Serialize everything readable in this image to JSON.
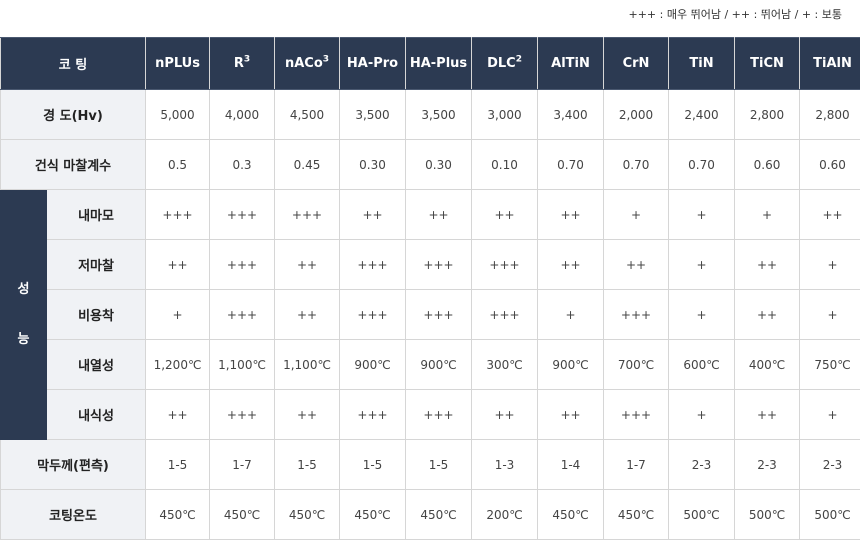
{
  "legend": "+++ : 매우 뛰어남 / ++ : 뛰어남 / + : 보통",
  "header": {
    "corner": "코 팅",
    "columns": [
      {
        "label": "nPLUs",
        "sup": ""
      },
      {
        "label": "R",
        "sup": "3"
      },
      {
        "label": "nACo",
        "sup": "3"
      },
      {
        "label": "HA-Pro",
        "sup": ""
      },
      {
        "label": "HA-Plus",
        "sup": ""
      },
      {
        "label": "DLC",
        "sup": "2"
      },
      {
        "label": "AlTiN",
        "sup": ""
      },
      {
        "label": "CrN",
        "sup": ""
      },
      {
        "label": "TiN",
        "sup": ""
      },
      {
        "label": "TiCN",
        "sup": ""
      },
      {
        "label": "TiAlN",
        "sup": ""
      }
    ]
  },
  "performance_group": {
    "chars": [
      "성",
      "능"
    ]
  },
  "rows": [
    {
      "label": "경 도(Hv)",
      "group": false,
      "values": [
        "5,000",
        "4,000",
        "4,500",
        "3,500",
        "3,500",
        "3,000",
        "3,400",
        "2,000",
        "2,400",
        "2,800",
        "2,800"
      ]
    },
    {
      "label": "건식 마찰계수",
      "group": false,
      "values": [
        "0.5",
        "0.3",
        "0.45",
        "0.30",
        "0.30",
        "0.10",
        "0.70",
        "0.70",
        "0.70",
        "0.60",
        "0.60"
      ]
    },
    {
      "label": "내마모",
      "group": true,
      "values": [
        "+++",
        "+++",
        "+++",
        "++",
        "++",
        "++",
        "++",
        "+",
        "+",
        "+",
        "++"
      ]
    },
    {
      "label": "저마찰",
      "group": true,
      "values": [
        "++",
        "+++",
        "++",
        "+++",
        "+++",
        "+++",
        "++",
        "++",
        "+",
        "++",
        "+"
      ]
    },
    {
      "label": "비용착",
      "group": true,
      "values": [
        "+",
        "+++",
        "++",
        "+++",
        "+++",
        "+++",
        "+",
        "+++",
        "+",
        "++",
        "+"
      ]
    },
    {
      "label": "내열성",
      "group": true,
      "values": [
        "1,200℃",
        "1,100℃",
        "1,100℃",
        "900℃",
        "900℃",
        "300℃",
        "900℃",
        "700℃",
        "600℃",
        "400℃",
        "750℃"
      ]
    },
    {
      "label": "내식성",
      "group": true,
      "values": [
        "++",
        "+++",
        "++",
        "+++",
        "+++",
        "++",
        "++",
        "+++",
        "+",
        "++",
        "+"
      ]
    },
    {
      "label": "막두께(편측)",
      "group": false,
      "values": [
        "1-5",
        "1-7",
        "1-5",
        "1-5",
        "1-5",
        "1-3",
        "1-4",
        "1-7",
        "2-3",
        "2-3",
        "2-3"
      ]
    },
    {
      "label": "코팅온도",
      "group": false,
      "values": [
        "450℃",
        "450℃",
        "450℃",
        "450℃",
        "450℃",
        "200℃",
        "450℃",
        "450℃",
        "500℃",
        "500℃",
        "500℃"
      ]
    }
  ]
}
